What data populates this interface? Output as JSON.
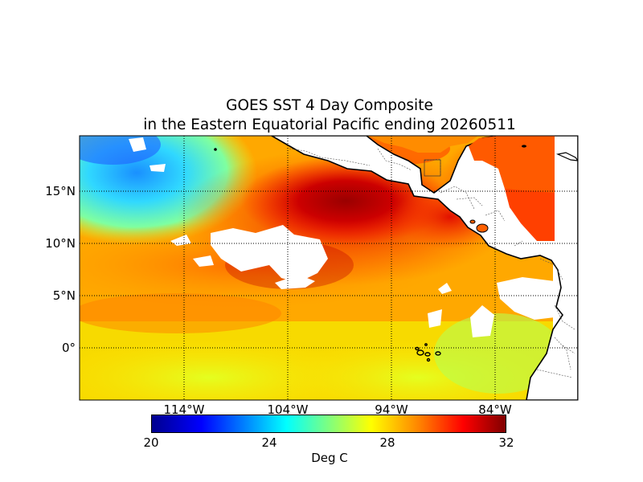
{
  "title_line1": "GOES SST 4 Day Composite",
  "title_line2": "in the Eastern Equatorial Pacific ending 20260511",
  "latitude_labels": [
    "15°N",
    "10°N",
    "5°N",
    "0°"
  ],
  "longitude_labels": [
    "114°W",
    "104°W",
    "94°W",
    "84°W"
  ],
  "colorbar": {
    "ticks": [
      "20",
      "24",
      "28",
      "32"
    ],
    "unit": "Deg C",
    "min": 20,
    "max": 32,
    "colors": [
      "#00008f",
      "#0000ff",
      "#00ffff",
      "#7fff7f",
      "#ffff00",
      "#ff7f00",
      "#ff0000",
      "#800000"
    ]
  },
  "map": {
    "lon_range": [
      -123,
      -75
    ],
    "lat_range": [
      -5,
      20
    ],
    "grid": "dotted, 5° latitude / 10° longitude",
    "land_color": "#ffffff",
    "no_data_color": "#ffffff"
  }
}
